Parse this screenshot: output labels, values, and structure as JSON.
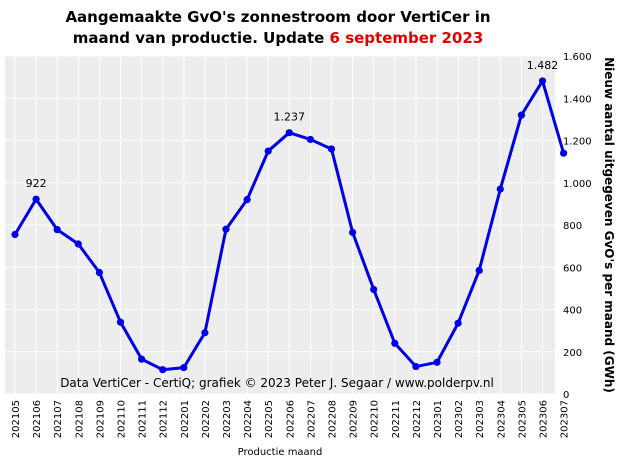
{
  "title": {
    "line1": "Aangemaakte GvO's zonnestroom door VertiCer in",
    "line2_prefix": "maand van productie. Update ",
    "update_date": "6 september 2023"
  },
  "colors": {
    "line": "#0000e6",
    "plot_background": "#ededed",
    "grid": "#ffffff",
    "date_highlight": "#e00000"
  },
  "credit": "Data VertiCer - CertiQ; grafiek © 2023 Peter J. Segaar / www.polderpv.nl",
  "chart_data": {
    "type": "line",
    "xlabel": "Productie maand",
    "ylabel": "Nieuw aantal uitgegeven GvO's per maand (GWh)",
    "ylim": [
      0,
      1600
    ],
    "yticks": [
      0,
      200,
      400,
      600,
      800,
      1000,
      1200,
      1400,
      1600
    ],
    "ytick_labels": [
      "0",
      "200",
      "400",
      "600",
      "800",
      "1.000",
      "1.200",
      "1.400",
      "1.600"
    ],
    "y_axis_side": "right",
    "grid": true,
    "categories": [
      "202105",
      "202106",
      "202107",
      "202108",
      "202109",
      "202110",
      "202111",
      "202112",
      "202201",
      "202202",
      "202203",
      "202204",
      "202205",
      "202206",
      "202207",
      "202208",
      "202209",
      "202210",
      "202211",
      "202212",
      "202301",
      "202302",
      "202303",
      "202304",
      "202305",
      "202306",
      "202307"
    ],
    "values": [
      755,
      922,
      778,
      710,
      575,
      340,
      165,
      115,
      125,
      290,
      780,
      920,
      1150,
      1237,
      1205,
      1160,
      765,
      495,
      240,
      130,
      150,
      335,
      585,
      970,
      1320,
      1482,
      1140
    ],
    "annotations": [
      {
        "index": 1,
        "text": "922"
      },
      {
        "index": 13,
        "text": "1.237"
      },
      {
        "index": 25,
        "text": "1.482"
      }
    ]
  }
}
